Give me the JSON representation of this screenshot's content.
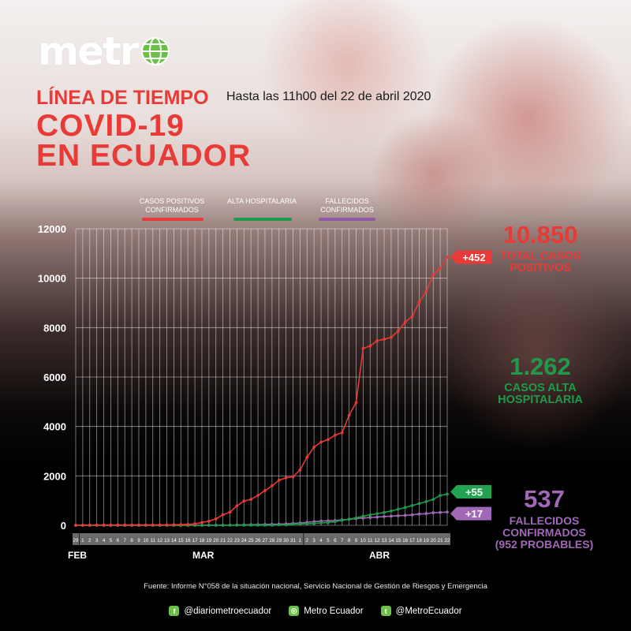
{
  "brand": {
    "logo_text": "metr"
  },
  "header": {
    "timeline_title": "LÍNEA DE TIEMPO",
    "date_note": "Hasta las 11h00 del 22 de abril 2020",
    "headline_1": "COVID-19",
    "headline_2": "EN ECUADOR"
  },
  "legend": {
    "cases": "CASOS POSITIVOS CONFIRMADOS",
    "discharged": "ALTA HOSPITALARIA",
    "deaths": "FALLECIDOS CONFIRMADOS"
  },
  "stats": {
    "cases_total": "10.850",
    "cases_label_1": "TOTAL CASOS",
    "cases_label_2": "POSITIVOS",
    "discharged_total": "1.262",
    "discharged_label_1": "CASOS ALTA",
    "discharged_label_2": "HOSPITALARIA",
    "deaths_total": "537",
    "deaths_label_1": "FALLECIDOS",
    "deaths_label_2": "CONFIRMADOS",
    "deaths_label_3": "(952 PROBABLES)"
  },
  "colors": {
    "cases": "#e83a36",
    "discharged": "#1f9a4b",
    "deaths": "#a268b8"
  },
  "footer": {
    "source": "Fuente: Informe N°058 de la situación nacional, Servicio Nacional de Gestión de Riesgos y Emergencia",
    "facebook": "@diariometroecuador",
    "instagram": "Metro Ecuador",
    "twitter": "@MetroEcuador"
  },
  "chart_data": {
    "type": "line",
    "ylim": [
      0,
      12000
    ],
    "yticks": [
      "0",
      "2000",
      "4000",
      "6000",
      "8000",
      "10000",
      "12000"
    ],
    "month_labels": [
      "FEB",
      "MAR",
      "ABR"
    ],
    "day_labels": [
      "29",
      "1",
      "2",
      "3",
      "4",
      "5",
      "6",
      "7",
      "8",
      "9",
      "10",
      "11",
      "12",
      "13",
      "14",
      "15",
      "16",
      "17",
      "18",
      "19",
      "20",
      "21",
      "22",
      "23",
      "24",
      "25",
      "26",
      "27",
      "28",
      "29",
      "30",
      "31",
      "1",
      "2",
      "3",
      "4",
      "5",
      "6",
      "7",
      "8",
      "9",
      "10",
      "11",
      "12",
      "13",
      "14",
      "15",
      "16",
      "17",
      "18",
      "19",
      "20",
      "21",
      "22"
    ],
    "series": [
      {
        "key": "cases",
        "badge": "+452",
        "values": [
          1,
          6,
          7,
          10,
          13,
          13,
          14,
          14,
          15,
          15,
          15,
          17,
          17,
          19,
          23,
          28,
          37,
          58,
          111,
          168,
          260,
          426,
          532,
          789,
          981,
          1049,
          1211,
          1403,
          1595,
          1823,
          1924,
          1966,
          2240,
          2758,
          3163,
          3368,
          3465,
          3646,
          3747,
          4450,
          4965,
          7161,
          7257,
          7466,
          7529,
          7603,
          7858,
          8225,
          8450,
          9022,
          9468,
          10128,
          10398,
          10850
        ]
      },
      {
        "key": "discharged",
        "badge": "+55",
        "values": [
          0,
          0,
          0,
          0,
          0,
          0,
          0,
          0,
          0,
          0,
          0,
          0,
          0,
          0,
          0,
          0,
          0,
          0,
          0,
          0,
          1,
          1,
          3,
          3,
          3,
          3,
          3,
          3,
          3,
          15,
          15,
          48,
          58,
          65,
          75,
          100,
          110,
          150,
          200,
          250,
          300,
          368,
          420,
          470,
          520,
          580,
          650,
          720,
          800,
          880,
          960,
          1050,
          1207,
          1262
        ]
      },
      {
        "key": "deaths",
        "badge": "+17",
        "values": [
          0,
          0,
          0,
          0,
          0,
          0,
          0,
          0,
          0,
          0,
          0,
          0,
          0,
          0,
          0,
          0,
          0,
          0,
          2,
          2,
          3,
          5,
          7,
          14,
          18,
          27,
          28,
          34,
          41,
          48,
          60,
          75,
          93,
          120,
          145,
          172,
          180,
          191,
          220,
          242,
          272,
          297,
          315,
          333,
          355,
          369,
          388,
          403,
          421,
          456,
          474,
          507,
          520,
          537
        ]
      }
    ]
  }
}
